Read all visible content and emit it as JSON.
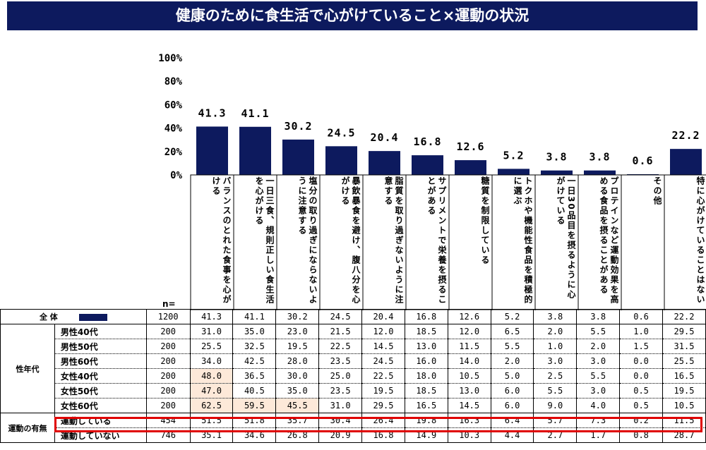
{
  "title": "健康のために食生活で心がけていること×運動の状況",
  "colors": {
    "title_bg": "#0d1a5e",
    "bar": "#0d1a5e",
    "highlight_cell": "#fde9d9",
    "highlight_row": "#e00000"
  },
  "chart_data": {
    "type": "bar",
    "title": "健康のために食生活で心がけていること×運動の状況",
    "ylim": [
      0,
      100
    ],
    "yticks": [
      "100%",
      "80%",
      "60%",
      "40%",
      "20%",
      "0%"
    ],
    "categories": [
      "バランスのとれた食事を心がける",
      "一日三食、規則正しい食生活を心がける",
      "塩分の取り過ぎにならないように注意する",
      "暴飲暴食を避け、腹八分を心がける",
      "脂質を取り過ぎないように注意する",
      "サプリメントで栄養を摂ることがある",
      "糖質を制限している",
      "トクホや機能性食品を積極的に選ぶ",
      "一日30品目を摂るように心がけている",
      "プロテインなど運動効果を高める食品を摂ることがある",
      "その他",
      "特に心がけていることはない"
    ],
    "values": [
      41.3,
      41.1,
      30.2,
      24.5,
      20.4,
      16.8,
      12.6,
      5.2,
      3.8,
      3.8,
      0.6,
      22.2
    ],
    "value_labels": [
      "41.3",
      "41.1",
      "30.2",
      "24.5",
      "20.4",
      "16.8",
      "12.6",
      "5.2",
      "3.8",
      "3.8",
      "0.6",
      "22.2"
    ]
  },
  "table": {
    "n_label": "n=",
    "total_row": {
      "label": "全 体",
      "n": "1200",
      "values": [
        "41.3",
        "41.1",
        "30.2",
        "24.5",
        "20.4",
        "16.8",
        "12.6",
        "5.2",
        "3.8",
        "3.8",
        "0.6",
        "22.2"
      ]
    },
    "groups": [
      {
        "label": "性年代",
        "rows": [
          {
            "label": "男性40代",
            "n": "200",
            "values": [
              "31.0",
              "35.0",
              "23.0",
              "21.5",
              "12.0",
              "18.5",
              "12.0",
              "6.5",
              "2.0",
              "5.5",
              "1.0",
              "29.5"
            ],
            "highlight": []
          },
          {
            "label": "男性50代",
            "n": "200",
            "values": [
              "25.5",
              "32.5",
              "19.5",
              "22.5",
              "14.5",
              "13.0",
              "11.5",
              "5.5",
              "1.0",
              "2.0",
              "1.5",
              "31.5"
            ],
            "highlight": []
          },
          {
            "label": "男性60代",
            "n": "200",
            "values": [
              "34.0",
              "42.5",
              "28.0",
              "23.5",
              "24.5",
              "16.0",
              "14.0",
              "2.0",
              "3.0",
              "3.0",
              "0.0",
              "25.5"
            ],
            "highlight": []
          },
          {
            "label": "女性40代",
            "n": "200",
            "values": [
              "48.0",
              "36.5",
              "30.0",
              "25.0",
              "22.5",
              "18.0",
              "10.5",
              "5.0",
              "2.5",
              "5.5",
              "0.0",
              "16.5"
            ],
            "highlight": [
              0
            ]
          },
          {
            "label": "女性50代",
            "n": "200",
            "values": [
              "47.0",
              "40.5",
              "35.0",
              "23.5",
              "19.5",
              "18.5",
              "13.0",
              "6.0",
              "5.5",
              "3.0",
              "0.5",
              "19.5"
            ],
            "highlight": [
              0
            ]
          },
          {
            "label": "女性60代",
            "n": "200",
            "values": [
              "62.5",
              "59.5",
              "45.5",
              "31.0",
              "29.5",
              "16.5",
              "14.5",
              "6.0",
              "9.0",
              "4.0",
              "0.5",
              "10.5"
            ],
            "highlight": [
              0,
              1,
              2
            ]
          }
        ]
      },
      {
        "label": "運動の有無",
        "rows": [
          {
            "label": "運動している",
            "n": "454",
            "values": [
              "51.5",
              "51.8",
              "35.7",
              "30.4",
              "26.4",
              "19.8",
              "16.3",
              "6.4",
              "5.7",
              "7.3",
              "0.2",
              "11.5"
            ],
            "highlight": []
          },
          {
            "label": "運動していない",
            "n": "746",
            "values": [
              "35.1",
              "34.6",
              "26.8",
              "20.9",
              "16.8",
              "14.9",
              "10.3",
              "4.4",
              "2.7",
              "1.7",
              "0.8",
              "28.7"
            ],
            "highlight": []
          }
        ]
      }
    ]
  }
}
